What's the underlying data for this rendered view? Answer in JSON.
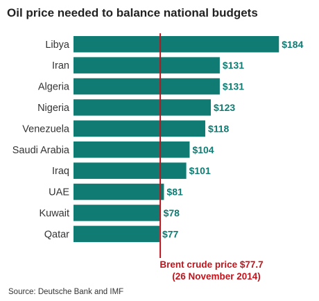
{
  "chart_data": {
    "type": "bar",
    "orientation": "horizontal",
    "title": "Oil price needed to balance national budgets",
    "categories": [
      "Libya",
      "Iran",
      "Algeria",
      "Nigeria",
      "Venezuela",
      "Saudi Arabia",
      "Iraq",
      "UAE",
      "Kuwait",
      "Qatar"
    ],
    "values": [
      184,
      131,
      131,
      123,
      118,
      104,
      101,
      81,
      78,
      77
    ],
    "value_labels": [
      "$184",
      "$131",
      "$131",
      "$123",
      "$118",
      "$104",
      "$101",
      "$81",
      "$78",
      "$77"
    ],
    "reference_line": {
      "value": 77.7,
      "label_line1": "Brent crude price $77.7",
      "label_line2": "(26 November 2014)",
      "color": "#c0141c"
    },
    "source": "Source: Deutsche Bank and IMF",
    "bar_color": "#0f7b72",
    "grid": false,
    "legend": "none"
  }
}
